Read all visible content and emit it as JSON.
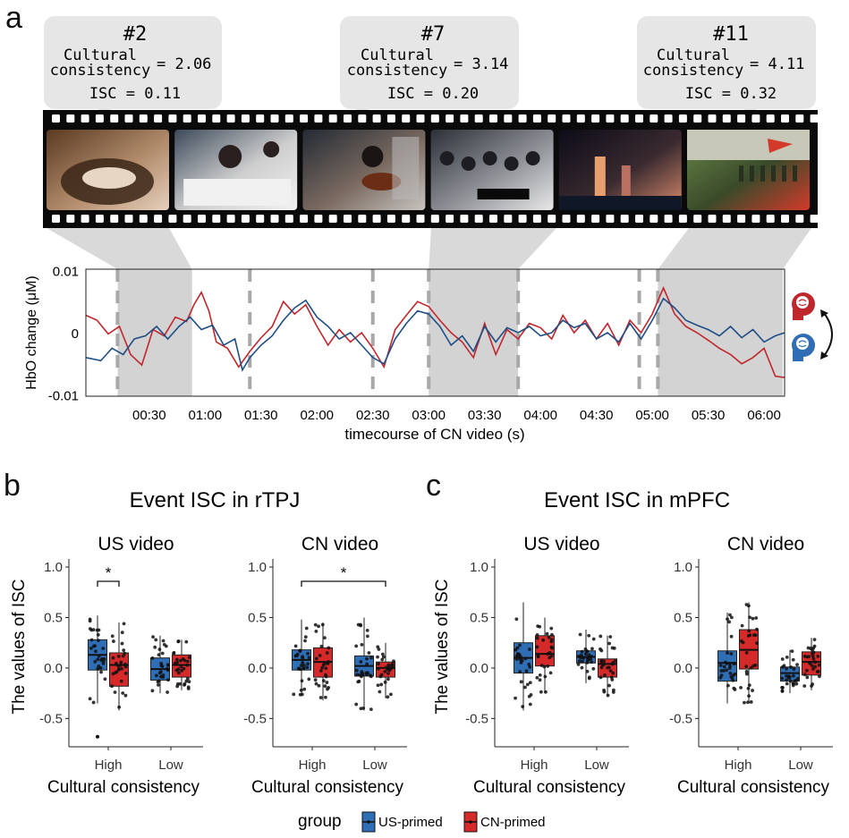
{
  "panel_a": {
    "label": "a",
    "callouts": [
      {
        "id": "#2",
        "cc_label_1": "Cultural",
        "cc_label_2": "consistency",
        "cc_value": "= 2.06",
        "isc_text": "ISC = 0.11"
      },
      {
        "id": "#7",
        "cc_label_1": "Cultural",
        "cc_label_2": "consistency",
        "cc_value": "= 3.14",
        "isc_text": "ISC = 0.20"
      },
      {
        "id": "#11",
        "cc_label_1": "Cultural",
        "cc_label_2": "consistency",
        "cc_value": "= 4.11",
        "isc_text": "ISC = 0.32"
      }
    ],
    "frames": [
      {
        "scene": "cooking-wok",
        "colors": [
          "#5a3a22",
          "#b08a6a",
          "#e6d0bc"
        ]
      },
      {
        "scene": "students-writing",
        "colors": [
          "#3d4a5a",
          "#cfcfcf",
          "#f2f2f2"
        ]
      },
      {
        "scene": "violin-player",
        "colors": [
          "#232a34",
          "#7a6a60",
          "#c8c4c0"
        ]
      },
      {
        "scene": "classroom",
        "colors": [
          "#2c3038",
          "#8e9096",
          "#e8e8e8"
        ]
      },
      {
        "scene": "city-night",
        "colors": [
          "#0c0c18",
          "#3a2a30",
          "#d88a6a"
        ]
      },
      {
        "scene": "parade-field",
        "colors": [
          "#6a8a4a",
          "#3a4a2a",
          "#d43a2a"
        ]
      }
    ],
    "line_colors": {
      "red": "#c0272d",
      "blue": "#1f4e86",
      "blue_light": "#6f90b8",
      "highlight": "#d3d3d3"
    },
    "chart_data": {
      "type": "line",
      "ylabel": "HbO change (μM)",
      "xlabel": "timecourse of CN video (s)",
      "y_ticks": [
        "0.01",
        "0",
        "-0.01"
      ],
      "y_tick_values": [
        0.01,
        0,
        -0.01
      ],
      "x_ticks": [
        "00:30",
        "01:00",
        "01:30",
        "02:00",
        "02:30",
        "03:00",
        "03:30",
        "04:00",
        "04:30",
        "05:00",
        "05:30",
        "06:00"
      ],
      "x_tick_values": [
        30,
        60,
        90,
        120,
        150,
        180,
        210,
        240,
        270,
        300,
        330,
        360
      ],
      "xlim": [
        -4,
        371
      ],
      "ylim": [
        -0.0102,
        0.0102
      ],
      "event_boundaries": [
        13,
        84,
        150,
        180,
        228,
        293,
        303
      ],
      "highlighted_events": [
        [
          13,
          53
        ],
        [
          180,
          228
        ],
        [
          303,
          370
        ]
      ],
      "series": [
        {
          "color": "red",
          "values": [
            [
              -4,
              0.0028
            ],
            [
              2,
              0.002
            ],
            [
              8,
              -0.0002
            ],
            [
              14,
              0.001
            ],
            [
              20,
              -0.0035
            ],
            [
              26,
              -0.0052
            ],
            [
              32,
              0.0005
            ],
            [
              38,
              -0.0005
            ],
            [
              44,
              0.0025
            ],
            [
              50,
              0.0018
            ],
            [
              54,
              0.0045
            ],
            [
              58,
              0.0065
            ],
            [
              62,
              0.0035
            ],
            [
              66,
              -0.0015
            ],
            [
              72,
              -0.0025
            ],
            [
              78,
              -0.0055
            ],
            [
              84,
              -0.003
            ],
            [
              90,
              -0.0008
            ],
            [
              96,
              0.001
            ],
            [
              102,
              0.005
            ],
            [
              108,
              0.003
            ],
            [
              114,
              0.0045
            ],
            [
              120,
              0.001
            ],
            [
              126,
              -0.002
            ],
            [
              132,
              0.0005
            ],
            [
              138,
              -0.0015
            ],
            [
              144,
              0.0
            ],
            [
              150,
              -0.0025
            ],
            [
              156,
              -0.0055
            ],
            [
              162,
              0.0005
            ],
            [
              168,
              0.0028
            ],
            [
              174,
              0.005
            ],
            [
              180,
              0.0042
            ],
            [
              186,
              0.002
            ],
            [
              192,
              0.0
            ],
            [
              198,
              -0.0015
            ],
            [
              204,
              -0.004
            ],
            [
              210,
              0.0015
            ],
            [
              216,
              -0.0035
            ],
            [
              222,
              0.0005
            ],
            [
              228,
              -0.001
            ],
            [
              234,
              0.0015
            ],
            [
              240,
              0.0008
            ],
            [
              246,
              -0.001
            ],
            [
              252,
              0.0028
            ],
            [
              258,
              0.0
            ],
            [
              264,
              0.002
            ],
            [
              270,
              -0.001
            ],
            [
              276,
              0.0015
            ],
            [
              282,
              -0.002
            ],
            [
              288,
              0.002
            ],
            [
              294,
              0.0
            ],
            [
              300,
              0.003
            ],
            [
              306,
              0.0072
            ],
            [
              312,
              0.003
            ],
            [
              318,
              0.001
            ],
            [
              324,
              0.0
            ],
            [
              330,
              -0.0012
            ],
            [
              336,
              -0.0025
            ],
            [
              342,
              -0.0035
            ],
            [
              348,
              -0.005
            ],
            [
              354,
              -0.004
            ],
            [
              360,
              -0.0025
            ],
            [
              366,
              -0.007
            ],
            [
              371,
              -0.0072
            ]
          ]
        },
        {
          "color": "blue",
          "values": [
            [
              -4,
              -0.004
            ],
            [
              4,
              -0.0045
            ],
            [
              10,
              -0.0025
            ],
            [
              16,
              -0.0035
            ],
            [
              22,
              -0.001
            ],
            [
              28,
              -0.0005
            ],
            [
              34,
              0.001
            ],
            [
              40,
              -0.001
            ],
            [
              46,
              0.001
            ],
            [
              52,
              0.0025
            ],
            [
              58,
              0.0005
            ],
            [
              64,
              0.0012
            ],
            [
              70,
              -0.002
            ],
            [
              76,
              -0.001
            ],
            [
              80,
              -0.006
            ],
            [
              84,
              -0.004
            ],
            [
              90,
              -0.002
            ],
            [
              96,
              -0.0005
            ],
            [
              102,
              0.002
            ],
            [
              108,
              0.004
            ],
            [
              114,
              0.0052
            ],
            [
              120,
              0.0025
            ],
            [
              126,
              0.001
            ],
            [
              132,
              -0.001
            ],
            [
              138,
              0.0
            ],
            [
              144,
              -0.002
            ],
            [
              150,
              -0.004
            ],
            [
              156,
              -0.005
            ],
            [
              162,
              -0.001
            ],
            [
              168,
              0.0015
            ],
            [
              174,
              0.0035
            ],
            [
              180,
              0.003
            ],
            [
              186,
              0.001
            ],
            [
              192,
              -0.002
            ],
            [
              198,
              -0.0005
            ],
            [
              204,
              -0.003
            ],
            [
              210,
              0.001
            ],
            [
              216,
              -0.0015
            ],
            [
              222,
              0.0008
            ],
            [
              228,
              0.0
            ],
            [
              234,
              0.001
            ],
            [
              240,
              -0.0005
            ],
            [
              246,
              0.0
            ],
            [
              252,
              0.002
            ],
            [
              258,
              0.0008
            ],
            [
              264,
              0.0015
            ],
            [
              270,
              -0.001
            ],
            [
              276,
              0.0
            ],
            [
              282,
              -0.0015
            ],
            [
              288,
              0.0015
            ],
            [
              294,
              -0.001
            ],
            [
              300,
              0.002
            ],
            [
              306,
              0.0055
            ],
            [
              312,
              0.004
            ],
            [
              318,
              0.002
            ],
            [
              324,
              0.0012
            ],
            [
              330,
              0.0005
            ],
            [
              336,
              -0.0005
            ],
            [
              342,
              0.001
            ],
            [
              348,
              -0.0008
            ],
            [
              354,
              0.0005
            ],
            [
              360,
              -0.0015
            ],
            [
              366,
              -0.0005
            ],
            [
              371,
              0.0
            ]
          ]
        }
      ]
    }
  },
  "panel_b": {
    "label": "b",
    "title": "Event ISC in rTPJ",
    "ylabel": "The values of ISC",
    "xlabel": "Cultural consistency",
    "subplots": [
      {
        "title": "US video",
        "sig_star": "*",
        "chart_data": {
          "type": "box",
          "categories": [
            "High",
            "Low"
          ],
          "y_ticks": [
            "1.0",
            "0.5",
            "0.0",
            "-0.5"
          ],
          "y_tick_values": [
            1.0,
            0.5,
            0.0,
            -0.5
          ],
          "ylim": [
            -0.78,
            1.08
          ],
          "groups": [
            {
              "category": "High",
              "group": "US-primed",
              "q1": -0.02,
              "median": 0.13,
              "q3": 0.28,
              "whisker_low": -0.35,
              "whisker_high": 0.52,
              "outliers": [
                -0.68
              ]
            },
            {
              "category": "High",
              "group": "CN-primed",
              "q1": -0.18,
              "median": 0.03,
              "q3": 0.15,
              "whisker_low": -0.42,
              "whisker_high": 0.45,
              "outliers": []
            },
            {
              "category": "Low",
              "group": "US-primed",
              "q1": -0.12,
              "median": -0.01,
              "q3": 0.1,
              "whisker_low": -0.25,
              "whisker_high": 0.32,
              "outliers": []
            },
            {
              "category": "Low",
              "group": "CN-primed",
              "q1": -0.09,
              "median": 0.03,
              "q3": 0.13,
              "whisker_low": -0.22,
              "whisker_high": 0.28,
              "outliers": []
            }
          ],
          "significance": [
            {
              "from": [
                "High",
                "US-primed"
              ],
              "to": [
                "High",
                "CN-primed"
              ],
              "label": "*"
            }
          ]
        }
      },
      {
        "title": "CN video",
        "sig_star": "*",
        "chart_data": {
          "type": "box",
          "categories": [
            "High",
            "Low"
          ],
          "y_ticks": [
            "1.0",
            "0.5",
            "0.0",
            "-0.5"
          ],
          "y_tick_values": [
            1.0,
            0.5,
            0.0,
            -0.5
          ],
          "ylim": [
            -0.78,
            1.08
          ],
          "groups": [
            {
              "category": "High",
              "group": "US-primed",
              "q1": -0.02,
              "median": 0.08,
              "q3": 0.18,
              "whisker_low": -0.28,
              "whisker_high": 0.48,
              "outliers": []
            },
            {
              "category": "High",
              "group": "CN-primed",
              "q1": -0.09,
              "median": 0.06,
              "q3": 0.2,
              "whisker_low": -0.32,
              "whisker_high": 0.45,
              "outliers": []
            },
            {
              "category": "Low",
              "group": "US-primed",
              "q1": -0.08,
              "median": 0.02,
              "q3": 0.12,
              "whisker_low": -0.42,
              "whisker_high": 0.5,
              "outliers": []
            },
            {
              "category": "Low",
              "group": "CN-primed",
              "q1": -0.09,
              "median": 0.0,
              "q3": 0.06,
              "whisker_low": -0.3,
              "whisker_high": 0.25,
              "outliers": []
            }
          ],
          "significance": [
            {
              "from": [
                "High",
                "US-primed"
              ],
              "to": [
                "Low",
                "CN-primed"
              ],
              "label": "*"
            }
          ]
        }
      }
    ]
  },
  "panel_c": {
    "label": "c",
    "title": "Event ISC in mPFC",
    "ylabel": "The values of ISC",
    "xlabel": "Cultural consistency",
    "subplots": [
      {
        "title": "US video",
        "chart_data": {
          "type": "box",
          "categories": [
            "High",
            "Low"
          ],
          "y_ticks": [
            "1.0",
            "0.5",
            "0.0",
            "-0.5"
          ],
          "y_tick_values": [
            1.0,
            0.5,
            0.0,
            -0.5
          ],
          "ylim": [
            -0.78,
            1.08
          ],
          "groups": [
            {
              "category": "High",
              "group": "US-primed",
              "q1": -0.05,
              "median": 0.1,
              "q3": 0.25,
              "whisker_low": -0.42,
              "whisker_high": 0.65,
              "outliers": []
            },
            {
              "category": "High",
              "group": "CN-primed",
              "q1": 0.02,
              "median": 0.14,
              "q3": 0.32,
              "whisker_low": -0.25,
              "whisker_high": 0.5,
              "outliers": []
            },
            {
              "category": "Low",
              "group": "US-primed",
              "q1": 0.05,
              "median": 0.11,
              "q3": 0.17,
              "whisker_low": -0.15,
              "whisker_high": 0.38,
              "outliers": []
            },
            {
              "category": "Low",
              "group": "CN-primed",
              "q1": -0.09,
              "median": 0.04,
              "q3": 0.09,
              "whisker_low": -0.28,
              "whisker_high": 0.32,
              "outliers": []
            }
          ],
          "significance": []
        }
      },
      {
        "title": "CN video",
        "chart_data": {
          "type": "box",
          "categories": [
            "High",
            "Low"
          ],
          "y_ticks": [
            "1.0",
            "0.5",
            "0.0",
            "-0.5"
          ],
          "y_tick_values": [
            1.0,
            0.5,
            0.0,
            -0.5
          ],
          "ylim": [
            -0.78,
            1.08
          ],
          "groups": [
            {
              "category": "High",
              "group": "US-primed",
              "q1": -0.13,
              "median": 0.05,
              "q3": 0.17,
              "whisker_low": -0.35,
              "whisker_high": 0.55,
              "outliers": []
            },
            {
              "category": "High",
              "group": "CN-primed",
              "q1": -0.01,
              "median": 0.18,
              "q3": 0.38,
              "whisker_low": -0.35,
              "whisker_high": 0.65,
              "outliers": []
            },
            {
              "category": "Low",
              "group": "US-primed",
              "q1": -0.13,
              "median": -0.05,
              "q3": 0.01,
              "whisker_low": -0.25,
              "whisker_high": 0.18,
              "outliers": []
            },
            {
              "category": "Low",
              "group": "CN-primed",
              "q1": -0.07,
              "median": 0.06,
              "q3": 0.16,
              "whisker_low": -0.22,
              "whisker_high": 0.3,
              "outliers": []
            }
          ],
          "significance": []
        }
      }
    ]
  },
  "legend": {
    "title": "group",
    "items": [
      {
        "label": "US-primed",
        "color": "#2f6db5"
      },
      {
        "label": "CN-primed",
        "color": "#d62a2a"
      }
    ]
  }
}
